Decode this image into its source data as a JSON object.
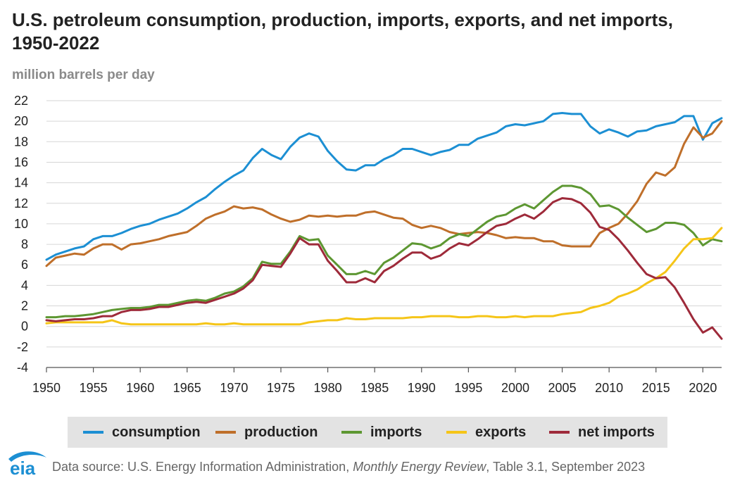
{
  "title": "U.S. petroleum consumption, production, imports, exports, and net imports, 1950-2022",
  "unit_label": "million barrels per day",
  "footer": {
    "logo_text": "eia",
    "source_prefix": "Data source: U.S. Energy Information Administration, ",
    "source_pub": "Monthly Energy Review",
    "source_suffix": ", Table 3.1, September 2023"
  },
  "legend": {
    "consumption": "consumption",
    "production": "production",
    "imports": "imports",
    "exports": "exports",
    "net_imports": "net imports"
  },
  "chart_data": {
    "type": "line",
    "title": "U.S. petroleum consumption, production, imports, exports, and net imports, 1950-2022",
    "ylabel": "million barrels per day",
    "ylim": [
      -4,
      22
    ],
    "yticks": [
      -4,
      -2,
      0,
      2,
      4,
      6,
      8,
      10,
      12,
      14,
      16,
      18,
      20,
      22
    ],
    "xlim": [
      1950,
      2022
    ],
    "xticks": [
      1950,
      1955,
      1960,
      1965,
      1970,
      1975,
      1980,
      1985,
      1990,
      1995,
      2000,
      2005,
      2010,
      2015,
      2020
    ],
    "grid": "horizontal",
    "legend_position": "bottom",
    "x": [
      1950,
      1951,
      1952,
      1953,
      1954,
      1955,
      1956,
      1957,
      1958,
      1959,
      1960,
      1961,
      1962,
      1963,
      1964,
      1965,
      1966,
      1967,
      1968,
      1969,
      1970,
      1971,
      1972,
      1973,
      1974,
      1975,
      1976,
      1977,
      1978,
      1979,
      1980,
      1981,
      1982,
      1983,
      1984,
      1985,
      1986,
      1987,
      1988,
      1989,
      1990,
      1991,
      1992,
      1993,
      1994,
      1995,
      1996,
      1997,
      1998,
      1999,
      2000,
      2001,
      2002,
      2003,
      2004,
      2005,
      2006,
      2007,
      2008,
      2009,
      2010,
      2011,
      2012,
      2013,
      2014,
      2015,
      2016,
      2017,
      2018,
      2019,
      2020,
      2021,
      2022
    ],
    "series": [
      {
        "name": "consumption",
        "color": "#1c8fd3",
        "values": [
          6.5,
          7.0,
          7.3,
          7.6,
          7.8,
          8.5,
          8.8,
          8.8,
          9.1,
          9.5,
          9.8,
          10.0,
          10.4,
          10.7,
          11.0,
          11.5,
          12.1,
          12.6,
          13.4,
          14.1,
          14.7,
          15.2,
          16.4,
          17.3,
          16.7,
          16.3,
          17.5,
          18.4,
          18.8,
          18.5,
          17.1,
          16.1,
          15.3,
          15.2,
          15.7,
          15.7,
          16.3,
          16.7,
          17.3,
          17.3,
          17.0,
          16.7,
          17.0,
          17.2,
          17.7,
          17.7,
          18.3,
          18.6,
          18.9,
          19.5,
          19.7,
          19.6,
          19.8,
          20.0,
          20.7,
          20.8,
          20.7,
          20.7,
          19.5,
          18.8,
          19.2,
          18.9,
          18.5,
          19.0,
          19.1,
          19.5,
          19.7,
          19.9,
          20.5,
          20.5,
          18.2,
          19.8,
          20.3
        ]
      },
      {
        "name": "production",
        "color": "#bf6f2a",
        "values": [
          5.9,
          6.7,
          6.9,
          7.1,
          7.0,
          7.6,
          8.0,
          8.0,
          7.5,
          8.0,
          8.1,
          8.3,
          8.5,
          8.8,
          9.0,
          9.2,
          9.8,
          10.5,
          10.9,
          11.2,
          11.7,
          11.5,
          11.6,
          11.4,
          10.9,
          10.5,
          10.2,
          10.4,
          10.8,
          10.7,
          10.8,
          10.7,
          10.8,
          10.8,
          11.1,
          11.2,
          10.9,
          10.6,
          10.5,
          9.9,
          9.6,
          9.8,
          9.6,
          9.2,
          9.0,
          9.1,
          9.2,
          9.1,
          8.9,
          8.6,
          8.7,
          8.6,
          8.6,
          8.3,
          8.3,
          7.9,
          7.8,
          7.8,
          7.8,
          9.1,
          9.6,
          10.0,
          11.0,
          12.2,
          13.9,
          15.0,
          14.7,
          15.5,
          17.8,
          19.4,
          18.4,
          18.8,
          20.0
        ]
      },
      {
        "name": "imports",
        "color": "#5d9732",
        "values": [
          0.9,
          0.9,
          1.0,
          1.0,
          1.1,
          1.2,
          1.4,
          1.6,
          1.7,
          1.8,
          1.8,
          1.9,
          2.1,
          2.1,
          2.3,
          2.5,
          2.6,
          2.5,
          2.8,
          3.2,
          3.4,
          3.9,
          4.7,
          6.3,
          6.1,
          6.1,
          7.3,
          8.8,
          8.4,
          8.5,
          6.9,
          6.0,
          5.1,
          5.1,
          5.4,
          5.1,
          6.2,
          6.7,
          7.4,
          8.1,
          8.0,
          7.6,
          7.9,
          8.6,
          9.0,
          8.8,
          9.5,
          10.2,
          10.7,
          10.9,
          11.5,
          11.9,
          11.5,
          12.3,
          13.1,
          13.7,
          13.7,
          13.5,
          12.9,
          11.7,
          11.8,
          11.4,
          10.6,
          9.9,
          9.2,
          9.5,
          10.1,
          10.1,
          9.9,
          9.1,
          7.9,
          8.5,
          8.3
        ]
      },
      {
        "name": "exports",
        "color": "#f5c518",
        "values": [
          0.3,
          0.4,
          0.4,
          0.4,
          0.4,
          0.4,
          0.4,
          0.6,
          0.3,
          0.2,
          0.2,
          0.2,
          0.2,
          0.2,
          0.2,
          0.2,
          0.2,
          0.3,
          0.2,
          0.2,
          0.3,
          0.2,
          0.2,
          0.2,
          0.2,
          0.2,
          0.2,
          0.2,
          0.4,
          0.5,
          0.6,
          0.6,
          0.8,
          0.7,
          0.7,
          0.8,
          0.8,
          0.8,
          0.8,
          0.9,
          0.9,
          1.0,
          1.0,
          1.0,
          0.9,
          0.9,
          1.0,
          1.0,
          0.9,
          0.9,
          1.0,
          0.9,
          1.0,
          1.0,
          1.0,
          1.2,
          1.3,
          1.4,
          1.8,
          2.0,
          2.3,
          2.9,
          3.2,
          3.6,
          4.2,
          4.7,
          5.3,
          6.4,
          7.6,
          8.5,
          8.5,
          8.6,
          9.6
        ]
      },
      {
        "name": "net imports",
        "color": "#9e2a3a",
        "values": [
          0.6,
          0.5,
          0.6,
          0.7,
          0.7,
          0.8,
          1.0,
          1.0,
          1.4,
          1.6,
          1.6,
          1.7,
          1.9,
          1.9,
          2.1,
          2.3,
          2.4,
          2.3,
          2.6,
          2.9,
          3.2,
          3.7,
          4.5,
          6.0,
          5.9,
          5.8,
          7.1,
          8.6,
          8.0,
          8.0,
          6.4,
          5.4,
          4.3,
          4.3,
          4.7,
          4.3,
          5.4,
          5.9,
          6.6,
          7.2,
          7.2,
          6.6,
          6.9,
          7.6,
          8.1,
          7.9,
          8.5,
          9.2,
          9.8,
          10.0,
          10.5,
          10.9,
          10.5,
          11.2,
          12.1,
          12.5,
          12.4,
          12.0,
          11.1,
          9.7,
          9.4,
          8.5,
          7.4,
          6.2,
          5.1,
          4.7,
          4.8,
          3.8,
          2.3,
          0.7,
          -0.6,
          -0.1,
          -1.2
        ]
      }
    ]
  }
}
